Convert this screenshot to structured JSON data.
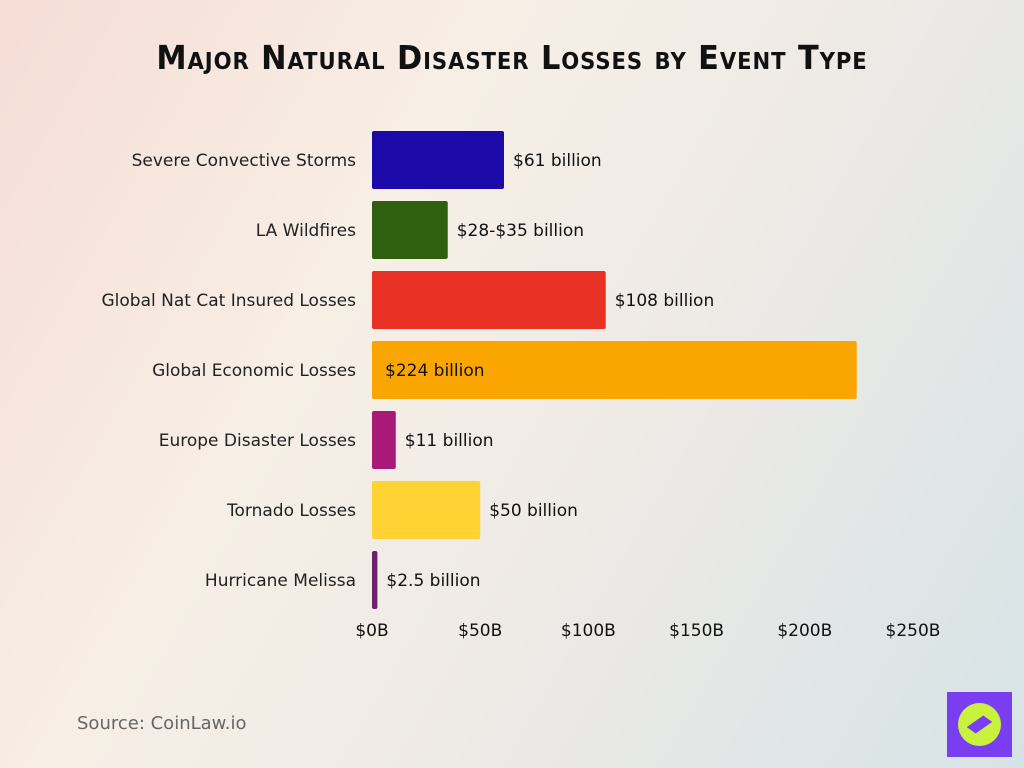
{
  "chart_data": {
    "type": "bar",
    "orientation": "horizontal",
    "title": "Major Natural Disaster Losses by Event Type",
    "categories": [
      "Severe Convective Storms",
      "LA Wildfires",
      "Global Nat Cat Insured Losses",
      "Global Economic Losses",
      "Europe Disaster Losses",
      "Tornado Losses",
      "Hurricane Melissa"
    ],
    "values": [
      61,
      35,
      108,
      224,
      11,
      50,
      2.5
    ],
    "value_labels": [
      "$61 billion",
      "$28-$35 billion",
      "$108 billion",
      "$224 billion",
      "$11 billion",
      "$50 billion",
      "$2.5 billion"
    ],
    "colors": [
      "#1c0aa8",
      "#2f6010",
      "#e83025",
      "#fba500",
      "#a81a78",
      "#ffd334",
      "#6a236a"
    ],
    "xlim": [
      0,
      250
    ],
    "xticks": [
      0,
      50,
      100,
      150,
      200,
      250
    ],
    "xtick_labels": [
      "$0B",
      "$50B",
      "$100B",
      "$150B",
      "$200B",
      "$250B"
    ],
    "xlabel": "",
    "ylabel": "",
    "grid": false
  },
  "source": "Source: CoinLaw.io"
}
